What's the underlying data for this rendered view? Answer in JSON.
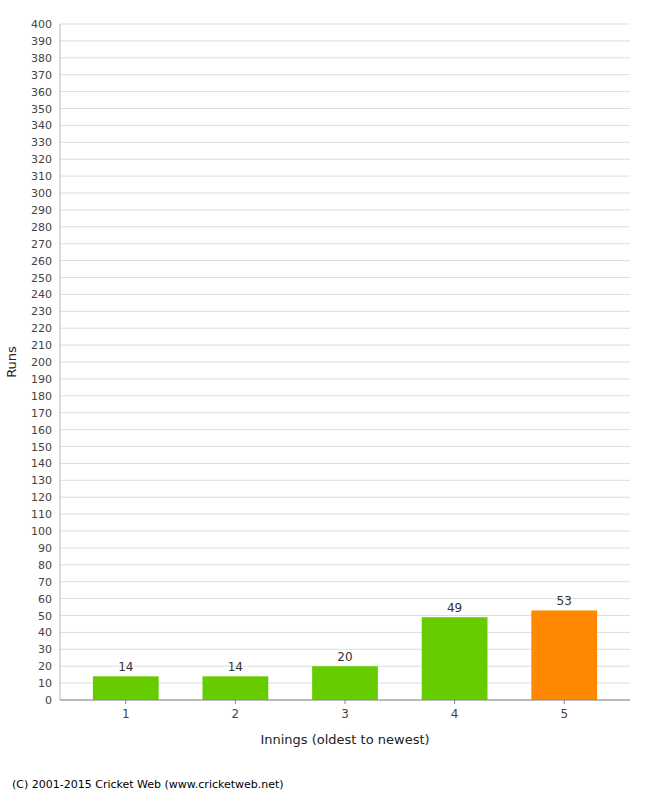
{
  "chart_data": {
    "type": "bar",
    "categories": [
      "1",
      "2",
      "3",
      "4",
      "5"
    ],
    "values": [
      14,
      14,
      20,
      49,
      53
    ],
    "colors": [
      "#66cc00",
      "#66cc00",
      "#66cc00",
      "#66cc00",
      "#ff8800"
    ],
    "xlabel": "Innings (oldest to newest)",
    "ylabel": "Runs",
    "ylim": [
      0,
      400
    ],
    "yticks": [
      0,
      10,
      20,
      30,
      40,
      50,
      60,
      70,
      80,
      90,
      100,
      110,
      120,
      130,
      140,
      150,
      160,
      170,
      180,
      190,
      200,
      210,
      220,
      230,
      240,
      250,
      260,
      270,
      280,
      290,
      300,
      310,
      320,
      330,
      340,
      350,
      360,
      370,
      380,
      390,
      400
    ],
    "grid": true,
    "data_labels": true,
    "footer": "(C) 2001-2015 Cricket Web (www.cricketweb.net)"
  }
}
